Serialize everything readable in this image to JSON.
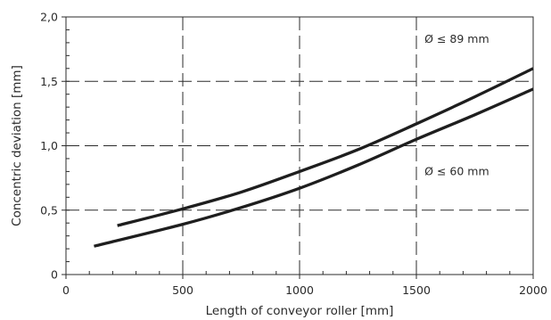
{
  "chart_data": {
    "type": "line",
    "xlabel": "Length of conveyor roller [mm]",
    "ylabel": "Concentric deviation [mm]",
    "xlim": [
      0,
      2000
    ],
    "ylim": [
      0,
      2.0
    ],
    "x_ticks": [
      0,
      500,
      1000,
      1500,
      2000
    ],
    "x_tick_labels": [
      "0",
      "500",
      "1000",
      "1500",
      "2000"
    ],
    "y_ticks": [
      0,
      0.5,
      1.0,
      1.5,
      2.0
    ],
    "y_tick_labels": [
      "0",
      "0,5",
      "1,0",
      "1,5",
      "2,0"
    ],
    "x_minor_step": 100,
    "y_minor_step": 0.1,
    "grid": true,
    "series": [
      {
        "name": "Ø ≤ 89 mm",
        "x": [
          220,
          500,
          750,
          1000,
          1250,
          1500,
          1750,
          2000
        ],
        "y": [
          0.38,
          0.51,
          0.64,
          0.8,
          0.97,
          1.17,
          1.38,
          1.6
        ]
      },
      {
        "name": "Ø ≤ 60 mm",
        "x": [
          120,
          500,
          750,
          1000,
          1250,
          1500,
          1750,
          2000
        ],
        "y": [
          0.22,
          0.39,
          0.52,
          0.67,
          0.85,
          1.05,
          1.24,
          1.44
        ]
      }
    ],
    "annotations": [
      {
        "text": "Ø ≤ 89 mm",
        "x": 1535,
        "y": 1.8
      },
      {
        "text": "Ø ≤ 60 mm",
        "x": 1535,
        "y": 0.77
      }
    ]
  }
}
